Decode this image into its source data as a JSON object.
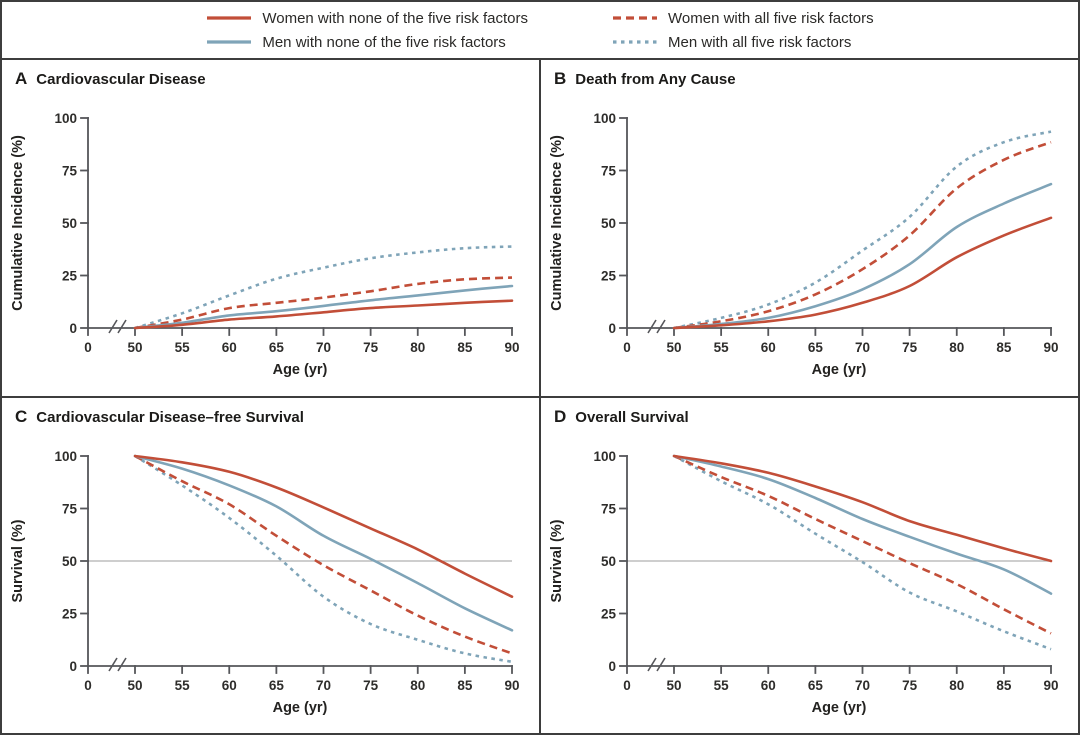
{
  "figure_title": "Four-panel risk factor burden figure",
  "colors": {
    "women": "#C24E38",
    "men": "#7FA4B8",
    "axis": "#55565A",
    "border": "#3D3D3D",
    "ref_line": "#B0B0B0",
    "text": "#2B2A28"
  },
  "legend": {
    "items": [
      {
        "id": "women-none",
        "label": "Women with none of the five risk factors",
        "color": "#C24E38",
        "dash": "solid"
      },
      {
        "id": "women-all",
        "label": "Women with all five risk factors",
        "color": "#C24E38",
        "dash": "long-dash"
      },
      {
        "id": "men-none",
        "label": "Men with none of the five risk factors",
        "color": "#7FA4B8",
        "dash": "solid"
      },
      {
        "id": "men-all",
        "label": "Men with all five risk factors",
        "color": "#7FA4B8",
        "dash": "short-dash"
      }
    ]
  },
  "chart_data": [
    {
      "panel": "A",
      "title": "Cardiovascular Disease",
      "type": "line",
      "xlabel": "Age (yr)",
      "ylabel": "Cumulative Incidence (%)",
      "x": [
        50,
        55,
        60,
        65,
        70,
        75,
        80,
        85,
        90
      ],
      "xticks": [
        0,
        50,
        55,
        60,
        65,
        70,
        75,
        80,
        85,
        90
      ],
      "yticks": [
        0,
        25,
        50,
        75,
        100
      ],
      "ylim": [
        0,
        100
      ],
      "axis_break": true,
      "ref_line": null,
      "legend_position": "top-outside",
      "grid": false,
      "series": [
        {
          "id": "women-none",
          "name": "Women with none of the five risk factors",
          "color": "#C24E38",
          "dash": "solid",
          "values": [
            0,
            1.5,
            4,
            5.5,
            7.5,
            9.5,
            10.7,
            12,
            13
          ]
        },
        {
          "id": "men-none",
          "name": "Men with none of the five risk factors",
          "color": "#7FA4B8",
          "dash": "solid",
          "values": [
            0,
            2.5,
            6,
            8,
            10.5,
            13.2,
            15.5,
            17.9,
            20
          ]
        },
        {
          "id": "women-all",
          "name": "Women with all five risk factors",
          "color": "#C24E38",
          "dash": "long-dash",
          "values": [
            0,
            4,
            9.5,
            12,
            14.5,
            17.5,
            21,
            23.2,
            24
          ]
        },
        {
          "id": "men-all",
          "name": "Men with all five risk factors",
          "color": "#7FA4B8",
          "dash": "short-dash",
          "values": [
            0,
            7,
            15.5,
            23.5,
            28.7,
            33.2,
            36,
            38,
            38.8
          ]
        }
      ]
    },
    {
      "panel": "B",
      "title": "Death from Any Cause",
      "type": "line",
      "xlabel": "Age (yr)",
      "ylabel": "Cumulative Incidence (%)",
      "x": [
        50,
        55,
        60,
        65,
        70,
        75,
        80,
        85,
        90
      ],
      "xticks": [
        0,
        50,
        55,
        60,
        65,
        70,
        75,
        80,
        85,
        90
      ],
      "yticks": [
        0,
        25,
        50,
        75,
        100
      ],
      "ylim": [
        0,
        100
      ],
      "axis_break": true,
      "ref_line": null,
      "grid": false,
      "series": [
        {
          "id": "women-none",
          "name": "Women with none of the five risk factors",
          "color": "#C24E38",
          "dash": "solid",
          "values": [
            0,
            1.3,
            3.2,
            6.4,
            12,
            20,
            33.7,
            44.1,
            52.5
          ]
        },
        {
          "id": "men-none",
          "name": "Men with none of the five risk factors",
          "color": "#7FA4B8",
          "dash": "solid",
          "values": [
            0,
            1.9,
            4.8,
            10.4,
            18.4,
            30.4,
            48.1,
            59.3,
            68.5
          ]
        },
        {
          "id": "women-all",
          "name": "Women with all five risk factors",
          "color": "#C24E38",
          "dash": "long-dash",
          "values": [
            0,
            3.2,
            8,
            16,
            28,
            44.1,
            66.5,
            80.1,
            88.5
          ]
        },
        {
          "id": "men-all",
          "name": "Men with all five risk factors",
          "color": "#7FA4B8",
          "dash": "short-dash",
          "values": [
            0,
            4.8,
            11.2,
            21.6,
            36.9,
            52.9,
            76.9,
            88.5,
            93.5
          ]
        }
      ]
    },
    {
      "panel": "C",
      "title": "Cardiovascular Disease–free Survival",
      "type": "line",
      "xlabel": "Age (yr)",
      "ylabel": "Survival (%)",
      "x": [
        50,
        55,
        60,
        65,
        70,
        75,
        80,
        85,
        90
      ],
      "xticks": [
        0,
        50,
        55,
        60,
        65,
        70,
        75,
        80,
        85,
        90
      ],
      "yticks": [
        0,
        25,
        50,
        75,
        100
      ],
      "ylim": [
        0,
        100
      ],
      "axis_break": true,
      "ref_line": 50,
      "grid": false,
      "series": [
        {
          "id": "women-none",
          "name": "Women with none of the five risk factors",
          "color": "#C24E38",
          "dash": "solid",
          "values": [
            100,
            97,
            92.5,
            85,
            75.5,
            65.5,
            55.5,
            44,
            33
          ]
        },
        {
          "id": "men-none",
          "name": "Men with none of the five risk factors",
          "color": "#7FA4B8",
          "dash": "solid",
          "values": [
            100,
            94,
            86,
            76,
            62,
            51,
            39.5,
            27.5,
            17
          ]
        },
        {
          "id": "women-all",
          "name": "Women with all five risk factors",
          "color": "#C24E38",
          "dash": "long-dash",
          "values": [
            100,
            88,
            77,
            62,
            48,
            36,
            24,
            14,
            6
          ]
        },
        {
          "id": "men-all",
          "name": "Men with all five risk factors",
          "color": "#7FA4B8",
          "dash": "short-dash",
          "values": [
            100,
            86,
            70.5,
            52.5,
            33,
            20,
            12.5,
            6,
            2
          ]
        }
      ]
    },
    {
      "panel": "D",
      "title": "Overall Survival",
      "type": "line",
      "xlabel": "Age (yr)",
      "ylabel": "Survival (%)",
      "x": [
        50,
        55,
        60,
        65,
        70,
        75,
        80,
        85,
        90
      ],
      "xticks": [
        0,
        50,
        55,
        60,
        65,
        70,
        75,
        80,
        85,
        90
      ],
      "yticks": [
        0,
        25,
        50,
        75,
        100
      ],
      "ylim": [
        0,
        100
      ],
      "axis_break": true,
      "ref_line": 50,
      "grid": false,
      "series": [
        {
          "id": "women-none",
          "name": "Women with none of the five risk factors",
          "color": "#C24E38",
          "dash": "solid",
          "values": [
            100,
            96.5,
            92,
            85.5,
            78,
            69,
            62.5,
            56,
            50
          ]
        },
        {
          "id": "men-none",
          "name": "Men with none of the five risk factors",
          "color": "#7FA4B8",
          "dash": "solid",
          "values": [
            100,
            95,
            89,
            80,
            70,
            61.5,
            53.5,
            46,
            34.5
          ]
        },
        {
          "id": "women-all",
          "name": "Women with all five risk factors",
          "color": "#C24E38",
          "dash": "long-dash",
          "values": [
            100,
            90,
            81,
            70,
            59.5,
            49,
            39,
            27,
            15.5
          ]
        },
        {
          "id": "men-all",
          "name": "Men with all five risk factors",
          "color": "#7FA4B8",
          "dash": "short-dash",
          "values": [
            100,
            88,
            77,
            63,
            49.5,
            35,
            26,
            16.5,
            8
          ]
        }
      ]
    }
  ]
}
